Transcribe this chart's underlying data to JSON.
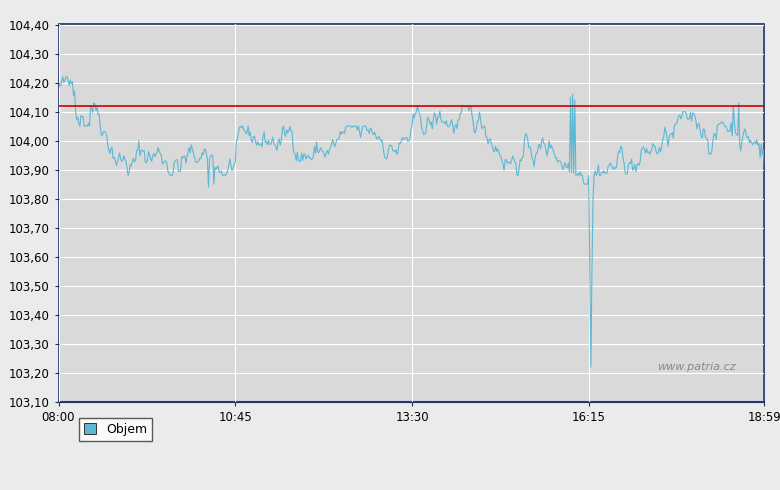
{
  "title": "",
  "ref_line_value": 104.12,
  "y_min": 103.1,
  "y_max": 104.4,
  "y_ticks": [
    103.1,
    103.2,
    103.3,
    103.4,
    103.5,
    103.6,
    103.7,
    103.8,
    103.9,
    104.0,
    104.1,
    104.2,
    104.3,
    104.4
  ],
  "x_tick_labels": [
    "08:00",
    "10:45",
    "13:30",
    "16:15",
    "18:59"
  ],
  "x_tick_positions": [
    0,
    165,
    330,
    495,
    659
  ],
  "total_points": 660,
  "line_color": "#5BB8D4",
  "ref_line_color": "#CC0000",
  "background_color": "#D9D9D9",
  "outer_background": "#EBEBEB",
  "legend_label": "Objem",
  "legend_color": "#5BB8D4",
  "watermark": "www.patria.cz",
  "axis_border_color": "#1A2F6B",
  "spike_x": 495,
  "spike_y": 103.22,
  "spike_pre_y": 103.88
}
